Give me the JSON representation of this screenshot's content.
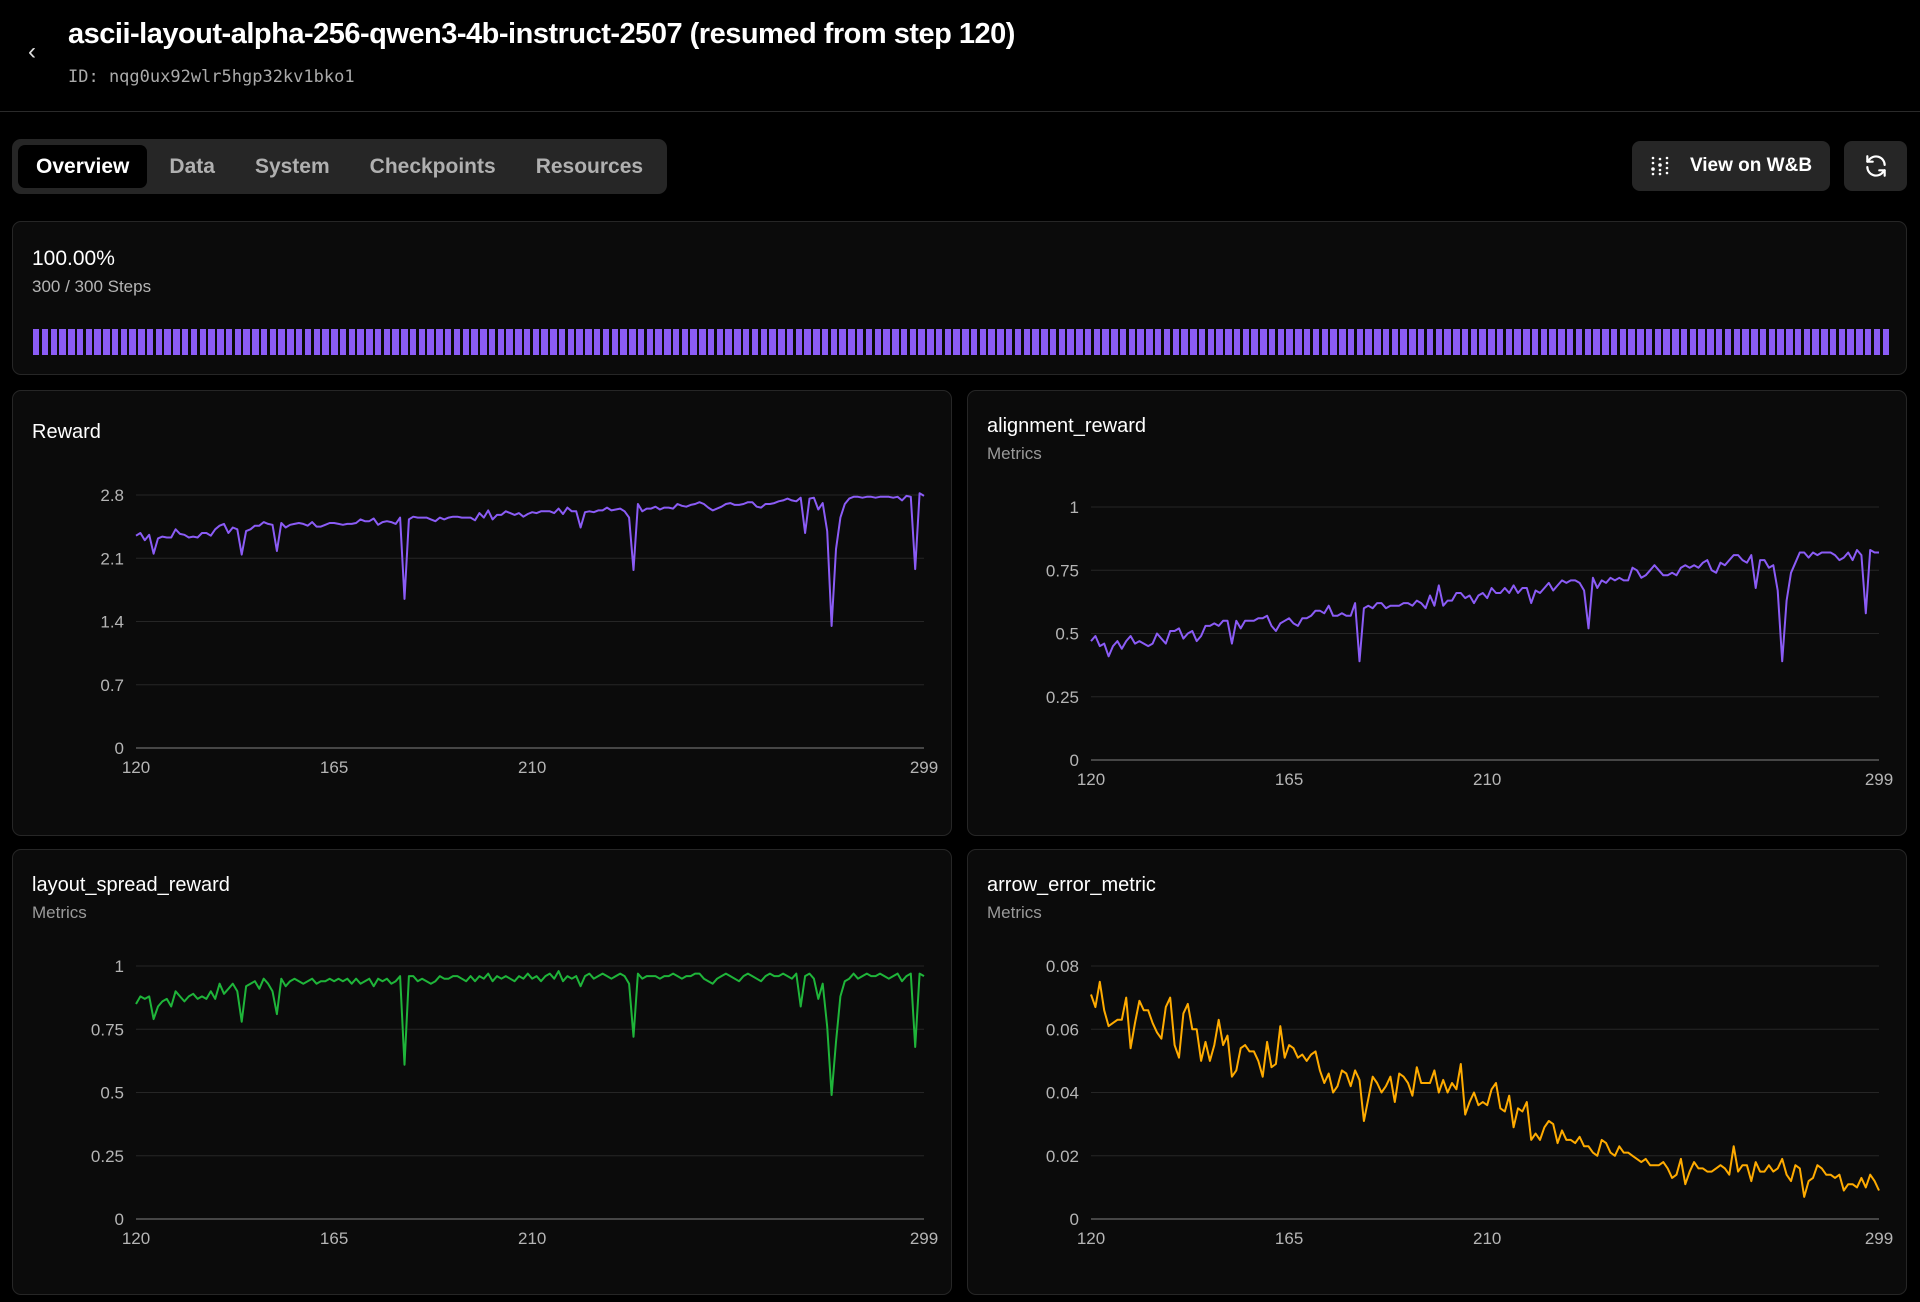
{
  "header": {
    "title": "ascii-layout-alpha-256-qwen3-4b-instruct-2507 (resumed from step 120)",
    "id_label": "ID: nqg0ux92wlr5hgp32kv1bko1",
    "back_icon": "chevron-left-icon"
  },
  "tabs": [
    {
      "label": "Overview",
      "active": true
    },
    {
      "label": "Data"
    },
    {
      "label": "System"
    },
    {
      "label": "Checkpoints"
    },
    {
      "label": "Resources"
    }
  ],
  "actions": {
    "wandb_label": "View on W&B",
    "wandb_icon": "wandb-dots-icon",
    "refresh_icon": "refresh-icon"
  },
  "progress": {
    "percent_label": "100.00%",
    "steps_label": "300 / 300 Steps",
    "fraction": 1.0,
    "color": "#8b5cf6"
  },
  "chart_data": [
    {
      "id": "reward",
      "type": "line",
      "title": "Reward",
      "subtitle": "",
      "color": "#8b5cf6",
      "x_start": 120,
      "x_end": 299,
      "xticks": [
        120,
        165,
        210,
        299
      ],
      "yticks": [
        0,
        0.7,
        1.4,
        2.1,
        2.8
      ],
      "ylim": [
        0,
        2.8
      ],
      "grid": true,
      "values": [
        2.35,
        2.38,
        2.3,
        2.36,
        2.15,
        2.32,
        2.34,
        2.33,
        2.33,
        2.42,
        2.37,
        2.36,
        2.33,
        2.34,
        2.33,
        2.38,
        2.38,
        2.35,
        2.42,
        2.46,
        2.48,
        2.38,
        2.44,
        2.42,
        2.14,
        2.4,
        2.42,
        2.46,
        2.46,
        2.5,
        2.48,
        2.47,
        2.18,
        2.49,
        2.44,
        2.47,
        2.48,
        2.49,
        2.48,
        2.46,
        2.5,
        2.45,
        2.45,
        2.47,
        2.49,
        2.49,
        2.48,
        2.47,
        2.48,
        2.48,
        2.49,
        2.53,
        2.51,
        2.51,
        2.54,
        2.47,
        2.5,
        2.51,
        2.5,
        2.48,
        2.55,
        1.65,
        2.53,
        2.56,
        2.55,
        2.55,
        2.55,
        2.53,
        2.51,
        2.55,
        2.53,
        2.55,
        2.56,
        2.56,
        2.55,
        2.55,
        2.55,
        2.52,
        2.6,
        2.55,
        2.63,
        2.53,
        2.58,
        2.58,
        2.62,
        2.6,
        2.58,
        2.6,
        2.56,
        2.59,
        2.61,
        2.6,
        2.62,
        2.62,
        2.62,
        2.6,
        2.65,
        2.59,
        2.66,
        2.62,
        2.62,
        2.44,
        2.61,
        2.62,
        2.61,
        2.63,
        2.63,
        2.66,
        2.63,
        2.64,
        2.65,
        2.62,
        2.55,
        1.97,
        2.7,
        2.62,
        2.65,
        2.65,
        2.67,
        2.64,
        2.66,
        2.66,
        2.65,
        2.7,
        2.68,
        2.67,
        2.69,
        2.7,
        2.72,
        2.7,
        2.66,
        2.63,
        2.65,
        2.67,
        2.7,
        2.71,
        2.69,
        2.69,
        2.7,
        2.72,
        2.72,
        2.67,
        2.66,
        2.7,
        2.7,
        2.71,
        2.73,
        2.74,
        2.76,
        2.74,
        2.73,
        2.77,
        2.38,
        2.76,
        2.77,
        2.64,
        2.71,
        2.4,
        1.35,
        2.2,
        2.55,
        2.7,
        2.76,
        2.78,
        2.78,
        2.77,
        2.78,
        2.78,
        2.77,
        2.78,
        2.78,
        2.78,
        2.77,
        2.78,
        2.74,
        2.79,
        2.78,
        1.98,
        2.82,
        2.79
      ]
    },
    {
      "id": "alignment",
      "type": "line",
      "title": "alignment_reward",
      "subtitle": "Metrics",
      "color": "#8b5cf6",
      "x_start": 120,
      "x_end": 299,
      "xticks": [
        120,
        165,
        210,
        299
      ],
      "yticks": [
        0,
        0.25,
        0.5,
        0.75,
        1
      ],
      "ylim": [
        0,
        1
      ],
      "grid": true,
      "values": [
        0.47,
        0.49,
        0.45,
        0.46,
        0.41,
        0.45,
        0.47,
        0.44,
        0.47,
        0.49,
        0.46,
        0.47,
        0.46,
        0.45,
        0.46,
        0.5,
        0.48,
        0.46,
        0.51,
        0.51,
        0.52,
        0.48,
        0.5,
        0.51,
        0.47,
        0.49,
        0.53,
        0.53,
        0.54,
        0.53,
        0.55,
        0.55,
        0.46,
        0.55,
        0.52,
        0.55,
        0.55,
        0.55,
        0.56,
        0.56,
        0.57,
        0.53,
        0.51,
        0.54,
        0.55,
        0.56,
        0.54,
        0.53,
        0.56,
        0.56,
        0.57,
        0.59,
        0.59,
        0.58,
        0.61,
        0.57,
        0.57,
        0.58,
        0.57,
        0.57,
        0.62,
        0.39,
        0.6,
        0.61,
        0.6,
        0.62,
        0.62,
        0.6,
        0.61,
        0.61,
        0.61,
        0.62,
        0.62,
        0.61,
        0.63,
        0.62,
        0.6,
        0.65,
        0.61,
        0.69,
        0.61,
        0.63,
        0.63,
        0.66,
        0.66,
        0.64,
        0.65,
        0.62,
        0.65,
        0.66,
        0.64,
        0.68,
        0.66,
        0.66,
        0.68,
        0.66,
        0.69,
        0.66,
        0.68,
        0.68,
        0.62,
        0.67,
        0.66,
        0.68,
        0.7,
        0.67,
        0.69,
        0.71,
        0.7,
        0.71,
        0.71,
        0.7,
        0.67,
        0.52,
        0.72,
        0.68,
        0.71,
        0.7,
        0.72,
        0.71,
        0.72,
        0.71,
        0.71,
        0.76,
        0.75,
        0.72,
        0.73,
        0.75,
        0.77,
        0.75,
        0.73,
        0.73,
        0.74,
        0.73,
        0.76,
        0.77,
        0.76,
        0.77,
        0.76,
        0.78,
        0.79,
        0.75,
        0.74,
        0.78,
        0.77,
        0.79,
        0.81,
        0.81,
        0.79,
        0.78,
        0.81,
        0.68,
        0.79,
        0.79,
        0.76,
        0.77,
        0.67,
        0.39,
        0.63,
        0.74,
        0.78,
        0.82,
        0.82,
        0.8,
        0.82,
        0.81,
        0.82,
        0.82,
        0.82,
        0.81,
        0.79,
        0.8,
        0.82,
        0.79,
        0.83,
        0.81,
        0.58,
        0.83,
        0.82,
        0.82
      ]
    },
    {
      "id": "layout",
      "type": "line",
      "title": "layout_spread_reward",
      "subtitle": "Metrics",
      "color": "#1fb53a",
      "x_start": 120,
      "x_end": 299,
      "xticks": [
        120,
        165,
        210,
        299
      ],
      "yticks": [
        0,
        0.25,
        0.5,
        0.75,
        1
      ],
      "ylim": [
        0,
        1
      ],
      "grid": true,
      "values": [
        0.85,
        0.88,
        0.87,
        0.88,
        0.79,
        0.84,
        0.86,
        0.87,
        0.84,
        0.9,
        0.88,
        0.86,
        0.88,
        0.89,
        0.87,
        0.88,
        0.87,
        0.9,
        0.87,
        0.93,
        0.89,
        0.91,
        0.93,
        0.9,
        0.78,
        0.92,
        0.93,
        0.94,
        0.91,
        0.95,
        0.93,
        0.9,
        0.81,
        0.95,
        0.92,
        0.94,
        0.95,
        0.94,
        0.93,
        0.94,
        0.95,
        0.93,
        0.94,
        0.94,
        0.95,
        0.94,
        0.95,
        0.94,
        0.95,
        0.93,
        0.95,
        0.93,
        0.94,
        0.95,
        0.92,
        0.95,
        0.94,
        0.95,
        0.93,
        0.94,
        0.96,
        0.61,
        0.96,
        0.96,
        0.94,
        0.95,
        0.94,
        0.93,
        0.94,
        0.96,
        0.95,
        0.95,
        0.96,
        0.96,
        0.95,
        0.94,
        0.96,
        0.94,
        0.96,
        0.95,
        0.97,
        0.94,
        0.96,
        0.95,
        0.96,
        0.95,
        0.94,
        0.96,
        0.95,
        0.97,
        0.95,
        0.96,
        0.94,
        0.96,
        0.97,
        0.95,
        0.98,
        0.94,
        0.96,
        0.95,
        0.96,
        0.92,
        0.96,
        0.97,
        0.95,
        0.96,
        0.97,
        0.96,
        0.95,
        0.96,
        0.97,
        0.96,
        0.93,
        0.72,
        0.97,
        0.95,
        0.96,
        0.96,
        0.96,
        0.95,
        0.96,
        0.96,
        0.97,
        0.96,
        0.95,
        0.96,
        0.96,
        0.97,
        0.97,
        0.95,
        0.94,
        0.93,
        0.95,
        0.96,
        0.97,
        0.96,
        0.95,
        0.94,
        0.96,
        0.97,
        0.96,
        0.95,
        0.94,
        0.96,
        0.97,
        0.96,
        0.96,
        0.97,
        0.96,
        0.95,
        0.97,
        0.84,
        0.96,
        0.97,
        0.95,
        0.87,
        0.93,
        0.76,
        0.49,
        0.7,
        0.88,
        0.94,
        0.95,
        0.97,
        0.95,
        0.96,
        0.97,
        0.96,
        0.96,
        0.97,
        0.96,
        0.95,
        0.96,
        0.97,
        0.94,
        0.96,
        0.97,
        0.68,
        0.97,
        0.96
      ]
    },
    {
      "id": "arrow",
      "type": "line",
      "title": "arrow_error_metric",
      "subtitle": "Metrics",
      "color": "#ffab00",
      "x_start": 120,
      "x_end": 299,
      "xticks": [
        120,
        165,
        210,
        299
      ],
      "yticks": [
        0,
        0.02,
        0.04,
        0.06,
        0.08
      ],
      "ylim": [
        0,
        0.08
      ],
      "grid": true,
      "values": [
        0.071,
        0.067,
        0.075,
        0.066,
        0.061,
        0.062,
        0.063,
        0.063,
        0.07,
        0.054,
        0.062,
        0.069,
        0.066,
        0.066,
        0.062,
        0.059,
        0.057,
        0.067,
        0.07,
        0.055,
        0.051,
        0.065,
        0.068,
        0.06,
        0.06,
        0.05,
        0.056,
        0.05,
        0.055,
        0.063,
        0.055,
        0.058,
        0.045,
        0.047,
        0.054,
        0.055,
        0.053,
        0.053,
        0.05,
        0.045,
        0.056,
        0.048,
        0.049,
        0.061,
        0.051,
        0.055,
        0.054,
        0.051,
        0.052,
        0.05,
        0.052,
        0.053,
        0.047,
        0.043,
        0.046,
        0.04,
        0.042,
        0.047,
        0.046,
        0.042,
        0.047,
        0.044,
        0.031,
        0.038,
        0.045,
        0.043,
        0.04,
        0.042,
        0.045,
        0.037,
        0.046,
        0.045,
        0.043,
        0.039,
        0.048,
        0.043,
        0.043,
        0.043,
        0.047,
        0.04,
        0.044,
        0.04,
        0.043,
        0.041,
        0.049,
        0.033,
        0.037,
        0.04,
        0.036,
        0.037,
        0.036,
        0.041,
        0.043,
        0.035,
        0.034,
        0.039,
        0.029,
        0.035,
        0.034,
        0.037,
        0.025,
        0.027,
        0.025,
        0.029,
        0.031,
        0.03,
        0.024,
        0.028,
        0.025,
        0.025,
        0.024,
        0.026,
        0.023,
        0.023,
        0.021,
        0.02,
        0.025,
        0.024,
        0.021,
        0.02,
        0.023,
        0.021,
        0.021,
        0.02,
        0.019,
        0.018,
        0.019,
        0.017,
        0.017,
        0.017,
        0.018,
        0.016,
        0.013,
        0.014,
        0.019,
        0.011,
        0.015,
        0.018,
        0.016,
        0.016,
        0.015,
        0.015,
        0.016,
        0.017,
        0.016,
        0.014,
        0.023,
        0.015,
        0.017,
        0.017,
        0.012,
        0.018,
        0.015,
        0.015,
        0.017,
        0.015,
        0.016,
        0.019,
        0.014,
        0.012,
        0.017,
        0.016,
        0.007,
        0.012,
        0.013,
        0.017,
        0.016,
        0.014,
        0.014,
        0.013,
        0.014,
        0.009,
        0.011,
        0.011,
        0.01,
        0.013,
        0.01,
        0.014,
        0.012,
        0.009
      ]
    }
  ]
}
